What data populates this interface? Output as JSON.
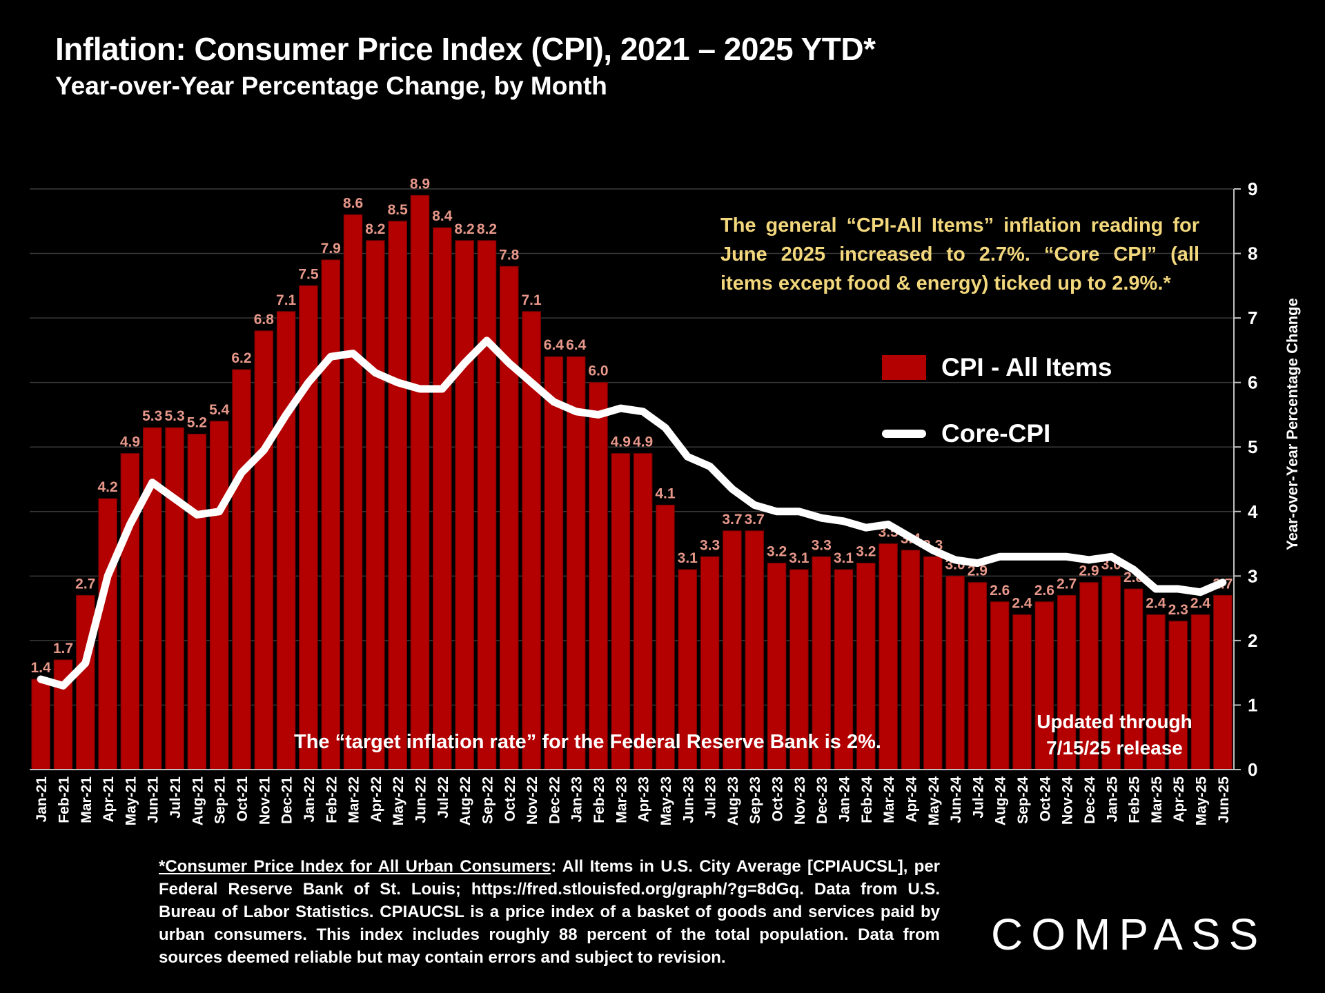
{
  "header": {
    "title": "Inflation: Consumer Price Index (CPI), 2021 – 2025 YTD*",
    "subtitle": "Year-over-Year Percentage Change, by Month"
  },
  "annotations": {
    "note": "The general “CPI-All Items” inflation reading for June 2025 increased to 2.7%. “Core CPI” (all items except food & energy) ticked up to 2.9%.*",
    "target": "The “target inflation rate” for the Federal Reserve Bank is 2%.",
    "updated_line1": "Updated through",
    "updated_line2": "7/15/25 release"
  },
  "legend": {
    "bar_label": "CPI - All Items",
    "line_label": "Core-CPI"
  },
  "footnote": {
    "link_text": "*Consumer Price Index for All Urban Consumers",
    "rest": ": All Items in U.S. City Average [CPIAUCSL], per Federal Reserve Bank of St. Louis; https://fred.stlouisfed.org/graph/?g=8dGq. Data from U.S. Bureau of Labor Statistics. CPIAUCSL is a price index of a basket of goods and services paid by urban consumers. This index includes roughly 88 percent of the total population. Data from sources deemed reliable but may contain errors and subject to revision."
  },
  "logo": "COMPASS",
  "colors": {
    "bar": "#b30000",
    "bar_label": "#e8988a",
    "line": "#ffffff",
    "note": "#f2d77c"
  },
  "chart_data": {
    "type": "bar",
    "title": "Inflation: Consumer Price Index (CPI), 2021 – 2025 YTD*",
    "subtitle": "Year-over-Year Percentage Change, by Month",
    "ylabel": "Year-over-Year Percentage Change",
    "xlabel": "",
    "ylim": [
      0,
      9
    ],
    "yticks": [
      "0",
      "1",
      "2",
      "3",
      "4",
      "5",
      "6",
      "7",
      "8",
      "9"
    ],
    "y_axis_side": "right",
    "grid": true,
    "legend_position": "right",
    "categories": [
      "Jan-21",
      "Feb-21",
      "Mar-21",
      "Apr-21",
      "May-21",
      "Jun-21",
      "Jul-21",
      "Aug-21",
      "Sep-21",
      "Oct-21",
      "Nov-21",
      "Dec-21",
      "Jan-22",
      "Feb-22",
      "Mar-22",
      "Apr-22",
      "May-22",
      "Jun-22",
      "Jul-22",
      "Aug-22",
      "Sep-22",
      "Oct-22",
      "Nov-22",
      "Dec-22",
      "Jan-23",
      "Feb-23",
      "Mar-23",
      "Apr-23",
      "May-23",
      "Jun-23",
      "Jul-23",
      "Aug-23",
      "Sep-23",
      "Oct-23",
      "Nov-23",
      "Dec-23",
      "Jan-24",
      "Feb-24",
      "Mar-24",
      "Apr-24",
      "May-24",
      "Jun-24",
      "Jul-24",
      "Aug-24",
      "Sep-24",
      "Oct-24",
      "Nov-24",
      "Dec-24",
      "Jan-25",
      "Feb-25",
      "Mar-25",
      "Apr-25",
      "May-25",
      "Jun-25"
    ],
    "series": [
      {
        "name": "CPI - All Items",
        "type": "bar",
        "values": [
          1.4,
          1.7,
          2.7,
          4.2,
          4.9,
          5.3,
          5.3,
          5.2,
          5.4,
          6.2,
          6.8,
          7.1,
          7.5,
          7.9,
          8.6,
          8.2,
          8.5,
          8.9,
          8.4,
          8.2,
          8.2,
          7.8,
          7.1,
          6.4,
          6.4,
          6.0,
          4.9,
          4.9,
          4.1,
          3.1,
          3.3,
          3.7,
          3.7,
          3.2,
          3.1,
          3.3,
          3.1,
          3.2,
          3.5,
          3.4,
          3.3,
          3.0,
          2.9,
          2.6,
          2.4,
          2.6,
          2.7,
          2.9,
          3.0,
          2.8,
          2.4,
          2.3,
          2.4,
          2.7
        ],
        "labels": [
          "1.4",
          "1.7",
          "2.7",
          "4.2",
          "4.9",
          "5.3",
          "5.3",
          "5.2",
          "5.4",
          "6.2",
          "6.8",
          "7.1",
          "7.5",
          "7.9",
          "8.6",
          "8.2",
          "8.5",
          "8.9",
          "8.4",
          "8.2",
          "8.2",
          "7.8",
          "7.1",
          "6.4",
          "6.4",
          "6.0",
          "4.9",
          "4.9",
          "4.1",
          "3.1",
          "3.3",
          "3.7",
          "3.7",
          "3.2",
          "3.1",
          "3.3",
          "3.1",
          "3.2",
          "3.5",
          "3.4",
          "3.3",
          "3.0",
          "2.9",
          "2.6",
          "2.4",
          "2.6",
          "2.7",
          "2.9",
          "3.0",
          "2.8",
          "2.4",
          "2.3",
          "2.4",
          "2.7"
        ]
      },
      {
        "name": "Core-CPI",
        "type": "line",
        "values": [
          1.4,
          1.3,
          1.65,
          3.0,
          3.8,
          4.45,
          4.2,
          3.95,
          4.0,
          4.6,
          4.95,
          5.5,
          6.0,
          6.4,
          6.45,
          6.15,
          6.0,
          5.9,
          5.9,
          6.3,
          6.65,
          6.3,
          6.0,
          5.7,
          5.55,
          5.5,
          5.6,
          5.55,
          5.3,
          4.85,
          4.7,
          4.35,
          4.1,
          4.0,
          4.0,
          3.9,
          3.85,
          3.75,
          3.8,
          3.6,
          3.4,
          3.25,
          3.2,
          3.3,
          3.3,
          3.3,
          3.3,
          3.25,
          3.3,
          3.1,
          2.8,
          2.8,
          2.75,
          2.9
        ]
      }
    ]
  }
}
